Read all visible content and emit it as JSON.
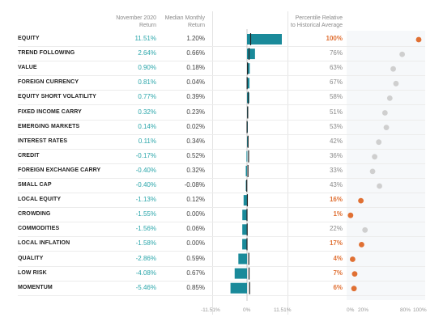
{
  "headers": {
    "return_line1": "November 2020",
    "return_line2": "Return",
    "median_line1": "Median Monthly",
    "median_line2": "Return",
    "pct_line1": "Percentile Relative",
    "pct_line2": "to Historical Average"
  },
  "bar_axis_labels": [
    "-11.51%",
    "0%",
    "11.51%"
  ],
  "pct_axis_labels": [
    "0%",
    "20%",
    "80%",
    "100%"
  ],
  "colors": {
    "bar": "#1a8a9a",
    "return_text": "#2aa6aa",
    "highlight": "#e07033",
    "dot_normal": "#cfcfcf"
  },
  "chart_data": {
    "type": "table",
    "bar_range": [
      -11.51,
      11.51
    ],
    "pct_range": [
      0,
      100
    ],
    "rows": [
      {
        "name": "EQUITY",
        "ret": "11.51%",
        "ret_val": 11.51,
        "median": "1.20%",
        "median_val": 1.2,
        "pct": "100%",
        "pct_val": 100,
        "hi": true
      },
      {
        "name": "TREND FOLLOWING",
        "ret": "2.64%",
        "ret_val": 2.64,
        "median": "0.66%",
        "median_val": 0.66,
        "pct": "76%",
        "pct_val": 76,
        "hi": false
      },
      {
        "name": "VALUE",
        "ret": "0.90%",
        "ret_val": 0.9,
        "median": "0.18%",
        "median_val": 0.18,
        "pct": "63%",
        "pct_val": 63,
        "hi": false
      },
      {
        "name": "FOREIGN CURRENCY",
        "ret": "0.81%",
        "ret_val": 0.81,
        "median": "0.04%",
        "median_val": 0.04,
        "pct": "67%",
        "pct_val": 67,
        "hi": false
      },
      {
        "name": "EQUITY SHORT VOLATILITY",
        "ret": "0.77%",
        "ret_val": 0.77,
        "median": "0.39%",
        "median_val": 0.39,
        "pct": "58%",
        "pct_val": 58,
        "hi": false
      },
      {
        "name": "FIXED INCOME CARRY",
        "ret": "0.32%",
        "ret_val": 0.32,
        "median": "0.23%",
        "median_val": 0.23,
        "pct": "51%",
        "pct_val": 51,
        "hi": false
      },
      {
        "name": "EMERGING MARKETS",
        "ret": "0.14%",
        "ret_val": 0.14,
        "median": "0.02%",
        "median_val": 0.02,
        "pct": "53%",
        "pct_val": 53,
        "hi": false
      },
      {
        "name": "INTEREST RATES",
        "ret": "0.11%",
        "ret_val": 0.11,
        "median": "0.34%",
        "median_val": 0.34,
        "pct": "42%",
        "pct_val": 42,
        "hi": false
      },
      {
        "name": "CREDIT",
        "ret": "-0.17%",
        "ret_val": -0.17,
        "median": "0.52%",
        "median_val": 0.52,
        "pct": "36%",
        "pct_val": 36,
        "hi": false
      },
      {
        "name": "FOREIGN EXCHANGE CARRY",
        "ret": "-0.40%",
        "ret_val": -0.4,
        "median": "0.32%",
        "median_val": 0.32,
        "pct": "33%",
        "pct_val": 33,
        "hi": false
      },
      {
        "name": "SMALL CAP",
        "ret": "-0.40%",
        "ret_val": -0.4,
        "median": "-0.08%",
        "median_val": -0.08,
        "pct": "43%",
        "pct_val": 43,
        "hi": false
      },
      {
        "name": "LOCAL EQUITY",
        "ret": "-1.13%",
        "ret_val": -1.13,
        "median": "0.12%",
        "median_val": 0.12,
        "pct": "16%",
        "pct_val": 16,
        "hi": true
      },
      {
        "name": "CROWDING",
        "ret": "-1.55%",
        "ret_val": -1.55,
        "median": "0.00%",
        "median_val": 0.0,
        "pct": "1%",
        "pct_val": 1,
        "hi": true
      },
      {
        "name": "COMMODITIES",
        "ret": "-1.56%",
        "ret_val": -1.56,
        "median": "0.06%",
        "median_val": 0.06,
        "pct": "22%",
        "pct_val": 22,
        "hi": false
      },
      {
        "name": "LOCAL INFLATION",
        "ret": "-1.58%",
        "ret_val": -1.58,
        "median": "0.00%",
        "median_val": 0.0,
        "pct": "17%",
        "pct_val": 17,
        "hi": true
      },
      {
        "name": "QUALITY",
        "ret": "-2.86%",
        "ret_val": -2.86,
        "median": "0.59%",
        "median_val": 0.59,
        "pct": "4%",
        "pct_val": 4,
        "hi": true
      },
      {
        "name": "LOW RISK",
        "ret": "-4.08%",
        "ret_val": -4.08,
        "median": "0.67%",
        "median_val": 0.67,
        "pct": "7%",
        "pct_val": 7,
        "hi": true
      },
      {
        "name": "MOMENTUM",
        "ret": "-5.46%",
        "ret_val": -5.46,
        "median": "0.85%",
        "median_val": 0.85,
        "pct": "6%",
        "pct_val": 6,
        "hi": true
      }
    ]
  }
}
